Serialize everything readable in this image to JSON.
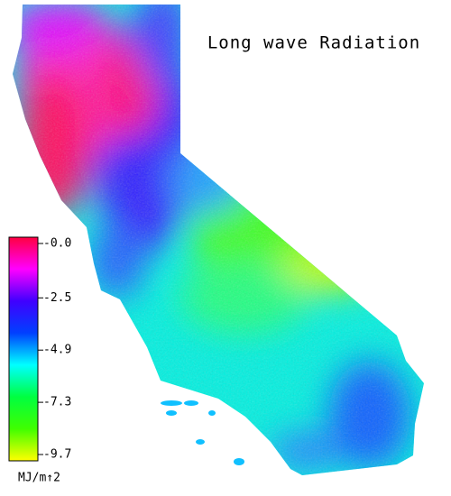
{
  "title": "Long wave Radiation",
  "legend": {
    "unit": "MJ/m↑2",
    "range": [
      -9.7,
      0
    ],
    "colors": [
      "#ff0040",
      "#ff00ff",
      "#4000ff",
      "#0040ff",
      "#00ffff",
      "#00ff40",
      "#40ff00",
      "#ffff00"
    ],
    "ticks": [
      {
        "value": 0,
        "label": "-0.0"
      },
      -2.5,
      -4.9,
      -7.3,
      -9.7
    ]
  }
}
